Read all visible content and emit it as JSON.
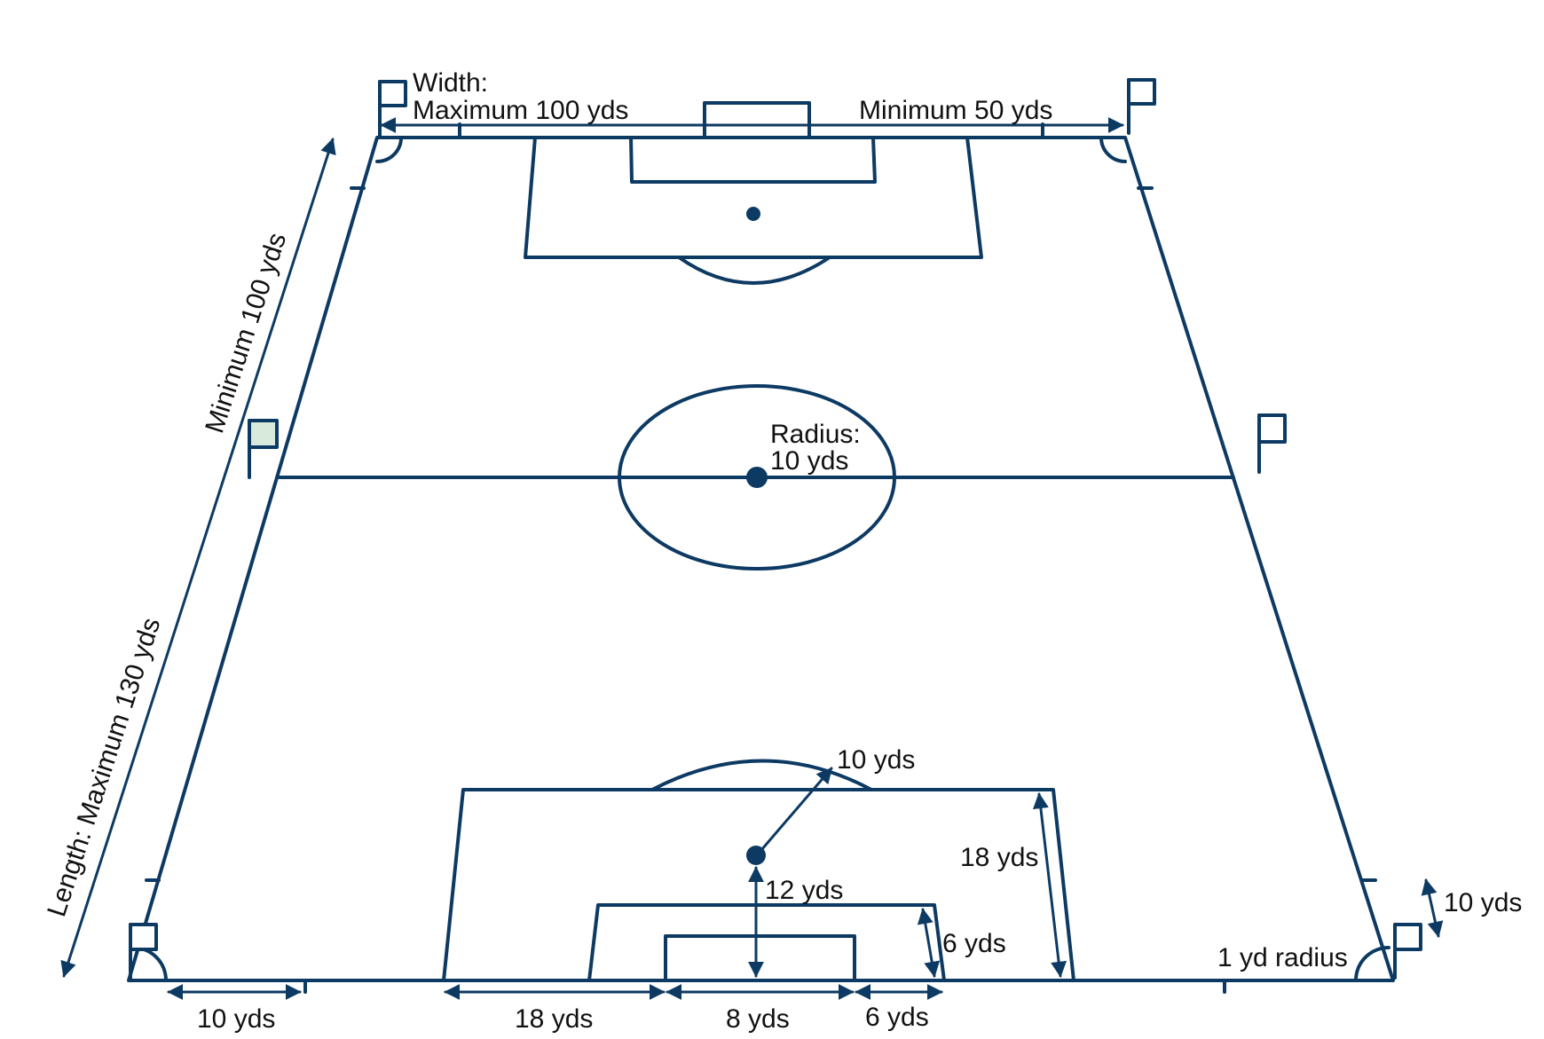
{
  "labels": {
    "width_title": "Width:",
    "width_max": "Maximum 100 yds",
    "width_min": "Minimum 50 yds",
    "length_max": "Length: Maximum 130 yds",
    "length_min": "Minimum 100 yds",
    "radius_title": "Radius:",
    "radius_value": "10 yds",
    "arc_10": "10 yds",
    "box_18": "18 yds",
    "penalty_12": "12 yds",
    "goal_area_6": "6 yds",
    "flag_10": "10 yds",
    "corner_radius": "1 yd radius",
    "bottom_10": "10 yds",
    "bottom_18": "18 yds",
    "bottom_8": "8 yds",
    "bottom_6": "6 yds"
  },
  "colors": {
    "pitch": "#d8eadb",
    "line": "#0d3a63"
  }
}
